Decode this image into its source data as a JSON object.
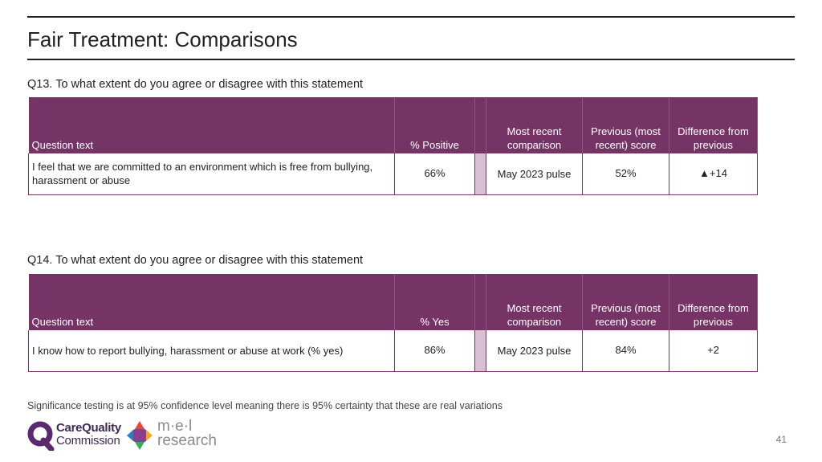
{
  "page": {
    "title": "Fair Treatment: Comparisons",
    "footnote": "Significance testing is at 95% confidence level meaning there is 95% certainty that these are real variations",
    "page_number": "41"
  },
  "q13": {
    "label": "Q13. To what extent do you agree or disagree with this statement",
    "headers": {
      "question": "Question text",
      "score": "% Positive",
      "comparison": "Most recent comparison",
      "previous": "Previous (most recent) score",
      "difference": "Difference from previous"
    },
    "row": {
      "question": "I feel that we are committed to an environment which is free from bullying, harassment or abuse",
      "score": "66%",
      "comparison": "May 2023 pulse",
      "previous": "52%",
      "difference": "▲+14"
    }
  },
  "q14": {
    "label": "Q14. To what extent do you agree or disagree with this statement",
    "headers": {
      "question": "Question text",
      "score": "% Yes",
      "comparison": "Most recent comparison",
      "previous": "Previous (most recent) score",
      "difference": "Difference from previous"
    },
    "row": {
      "question": "I know how to report bullying, harassment or abuse at work (% yes)",
      "score": "86%",
      "comparison": "May 2023 pulse",
      "previous": "84%",
      "difference": "+2"
    }
  },
  "logos": {
    "cqc_line1": "CareQuality",
    "cqc_line2": "Commission",
    "mel_line1": "m·e·l",
    "mel_line2": "research"
  },
  "colors": {
    "header_bg": "#753465",
    "gap_fill": "#d8bfd2"
  }
}
